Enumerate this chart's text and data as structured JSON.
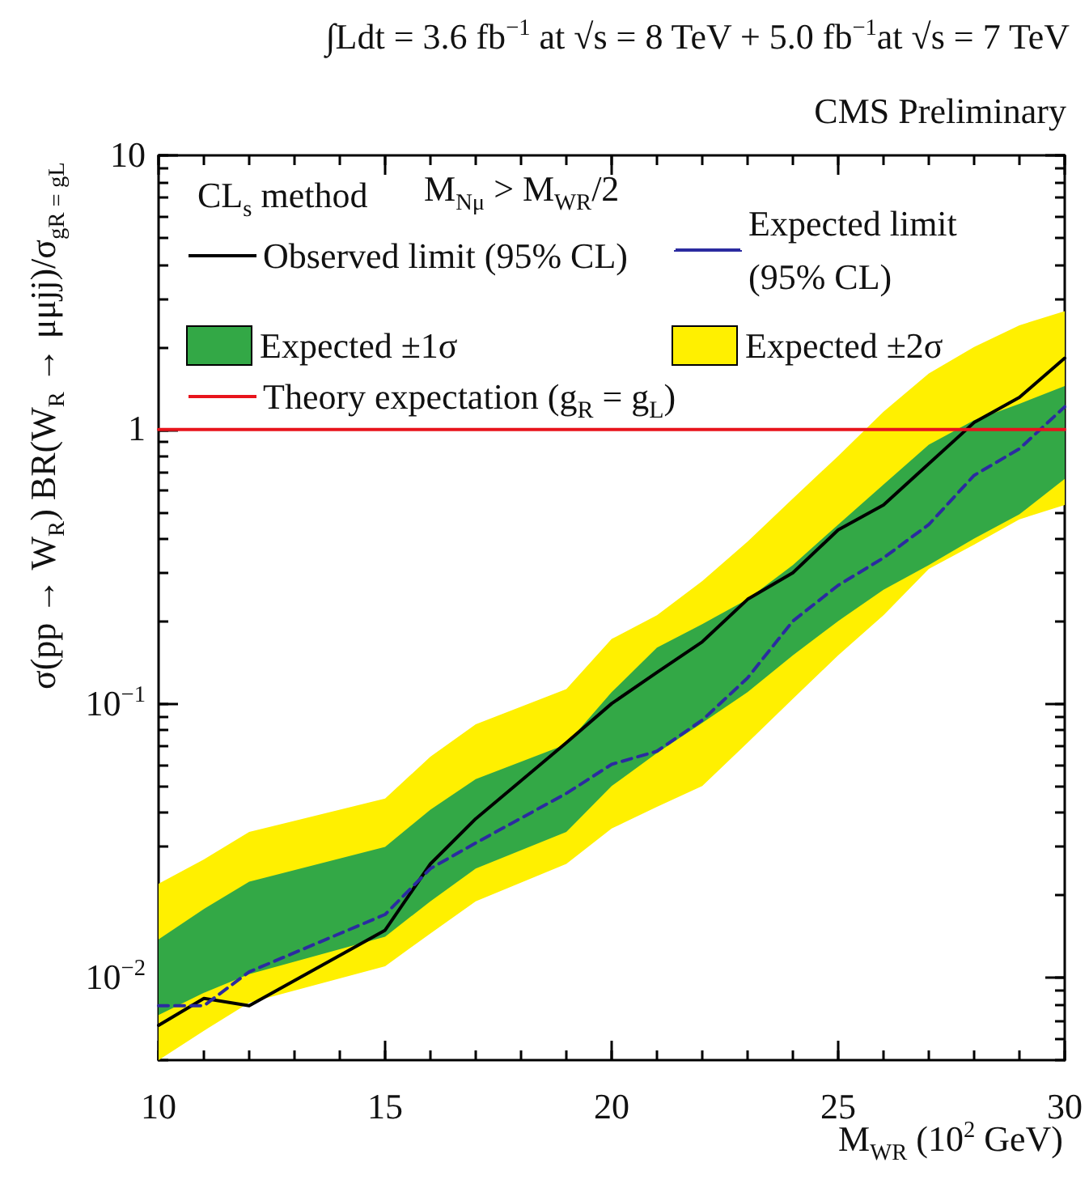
{
  "chart_data": {
    "type": "line",
    "title": "∫Ldt = 3.6  fb$^{−1}$ at √s = 8 TeV + 5.0 fb$^{−1}$at √s = 7 TeV",
    "subtitle": "CMS Preliminary",
    "xlabel": "M$_{WR}$  (10$^{2}$ GeV)",
    "ylabel": "σ(pp → W$_{R}$) BR(W$_{R}$ → μμjj)/σ$_{gR = gL}$",
    "annotations": [
      "CL$_{s}$  method",
      "M$_{Nμ}$ > M$_{WR}$/2"
    ],
    "x": [
      10,
      11,
      12,
      15,
      16,
      17,
      19,
      20,
      21,
      22,
      23,
      24,
      25,
      26,
      27,
      28,
      29,
      30
    ],
    "series": [
      {
        "name": "Expected ±2σ",
        "type": "area",
        "color": "#fff000",
        "values": [
          null,
          null,
          null,
          null,
          null,
          null,
          null,
          null,
          null,
          null,
          null,
          null,
          null,
          null,
          null,
          null,
          null,
          null
        ],
        "lower": [
          0.005,
          0.0064,
          0.0081,
          0.011,
          0.0145,
          0.019,
          0.026,
          0.035,
          0.042,
          0.05,
          0.072,
          0.104,
          0.15,
          0.21,
          0.31,
          0.38,
          0.47,
          0.53
        ],
        "upper": [
          0.022,
          0.027,
          0.034,
          0.045,
          0.064,
          0.084,
          0.113,
          0.172,
          0.21,
          0.28,
          0.39,
          0.56,
          0.8,
          1.16,
          1.6,
          2.0,
          2.4,
          2.7
        ]
      },
      {
        "name": "Expected ±1σ",
        "type": "area",
        "color": "#33a846",
        "values": [
          null,
          null,
          null,
          null,
          null,
          null,
          null,
          null,
          null,
          null,
          null,
          null,
          null,
          null,
          null,
          null,
          null,
          null
        ],
        "lower": [
          0.0073,
          0.0088,
          0.0103,
          0.0141,
          0.019,
          0.025,
          0.034,
          0.05,
          0.066,
          0.085,
          0.11,
          0.15,
          0.2,
          0.26,
          0.32,
          0.4,
          0.49,
          0.66
        ],
        "upper": [
          0.0138,
          0.0178,
          0.0224,
          0.03,
          0.041,
          0.053,
          0.071,
          0.11,
          0.16,
          0.195,
          0.24,
          0.32,
          0.45,
          0.63,
          0.88,
          1.08,
          1.24,
          1.44
        ]
      },
      {
        "name": "Observed limit (95% CL)",
        "type": "line",
        "color": "#000000",
        "line_style": "solid",
        "values": [
          0.0067,
          0.0084,
          0.0079,
          0.0149,
          0.026,
          0.038,
          0.072,
          0.1,
          0.13,
          0.168,
          0.24,
          0.3,
          0.43,
          0.53,
          0.75,
          1.06,
          1.31,
          1.82
        ]
      },
      {
        "name": "Expected limit (95% CL)",
        "type": "line",
        "color": "#2b2ba0",
        "line_style": "dashed",
        "values": [
          0.0079,
          0.0079,
          0.0105,
          0.017,
          0.025,
          0.031,
          0.047,
          0.06,
          0.067,
          0.087,
          0.124,
          0.2,
          0.27,
          0.34,
          0.45,
          0.68,
          0.85,
          1.21
        ]
      },
      {
        "name": "Theory expectation (g$_{R}$ = g$_{L}$)",
        "type": "line",
        "color": "#e8141c",
        "line_style": "solid",
        "values": [
          1,
          1,
          1,
          1,
          1,
          1,
          1,
          1,
          1,
          1,
          1,
          1,
          1,
          1,
          1,
          1,
          1,
          1
        ]
      }
    ],
    "xlim": [
      10,
      30
    ],
    "xticks": [
      10,
      15,
      20,
      25,
      30
    ],
    "ylim": [
      0.005,
      10
    ],
    "yticks": [
      {
        "value": 0.01,
        "label": "10$^{−2}$"
      },
      {
        "value": 0.1,
        "label": "10$^{−1}$"
      },
      1,
      10
    ],
    "log": "y",
    "grid": false,
    "legend": "top",
    "marker": "none"
  }
}
